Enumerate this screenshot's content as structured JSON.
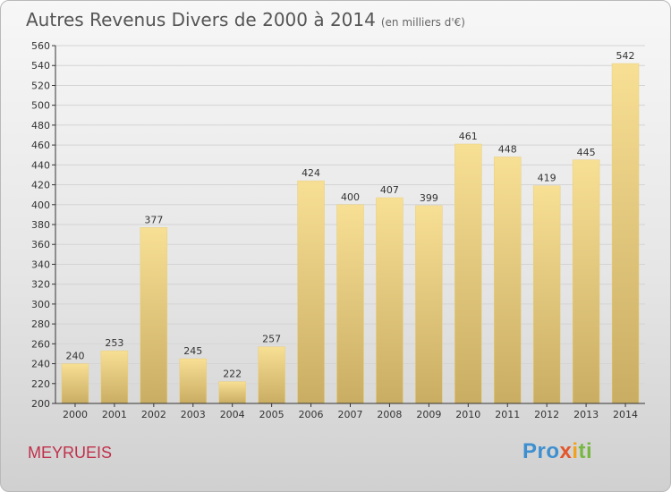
{
  "title": {
    "main": "Autres Revenus Divers de 2000 à 2014",
    "unit": "(en milliers d'€)"
  },
  "footer": {
    "city": "MEYRUEIS",
    "logo": "Proxiti"
  },
  "colors": {
    "bar_top": "#f7df94",
    "bar_bottom": "#c9ad63",
    "axis": "#333333",
    "grid": "#d4d4d4",
    "city": "#c0304a"
  },
  "chart_data": {
    "type": "bar",
    "categories": [
      "2000",
      "2001",
      "2002",
      "2003",
      "2004",
      "2005",
      "2006",
      "2007",
      "2008",
      "2009",
      "2010",
      "2011",
      "2012",
      "2013",
      "2014"
    ],
    "values": [
      240,
      253,
      377,
      245,
      222,
      257,
      424,
      400,
      407,
      399,
      461,
      448,
      419,
      445,
      542
    ],
    "title": "Autres Revenus Divers de 2000 à 2014",
    "subtitle": "(en milliers d'€)",
    "xlabel": "",
    "ylabel": "",
    "ylim": [
      200,
      560
    ],
    "yticks": [
      200,
      220,
      240,
      260,
      280,
      300,
      320,
      340,
      360,
      380,
      400,
      420,
      440,
      460,
      480,
      500,
      520,
      540,
      560
    ],
    "grid": true,
    "data_labels": true
  }
}
